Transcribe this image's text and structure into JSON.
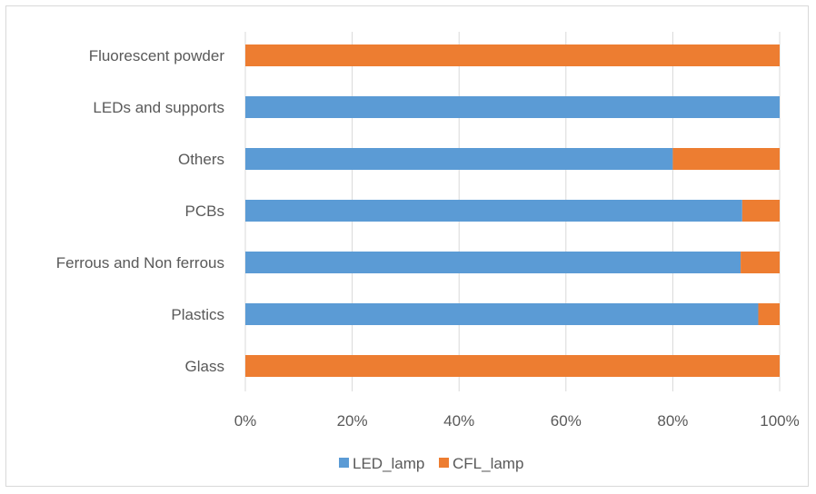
{
  "chart_data": {
    "type": "bar",
    "orientation": "horizontal",
    "stacking": "percent",
    "title": "",
    "xlabel": "",
    "ylabel": "",
    "categories": [
      "Fluorescent powder",
      "LEDs and supports",
      "Others",
      "PCBs",
      "Ferrous and Non ferrous",
      "Plastics",
      "Glass"
    ],
    "series": [
      {
        "name": "LED_lamp",
        "color": "#5b9bd5",
        "values": [
          0,
          100,
          80,
          93,
          92.7,
          96,
          0
        ]
      },
      {
        "name": "CFL_lamp",
        "color": "#ed7d31",
        "values": [
          100,
          0,
          20,
          7,
          7.3,
          4,
          100
        ]
      }
    ],
    "xlim": [
      0,
      100
    ],
    "x_ticks": [
      "0%",
      "20%",
      "40%",
      "60%",
      "80%",
      "100%"
    ],
    "grid": "vertical",
    "legend_position": "bottom"
  }
}
